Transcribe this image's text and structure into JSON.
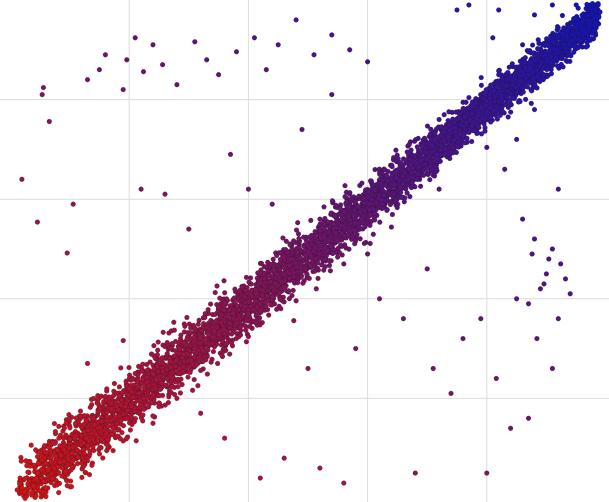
{
  "chart_data": {
    "type": "scatter",
    "title": "",
    "xlabel": "",
    "ylabel": "",
    "xlim": [
      0,
      5
    ],
    "ylim": [
      0,
      5
    ],
    "grid": true,
    "legend": "none",
    "color_low": "#d41414",
    "color_high": "#1414b4",
    "series": [
      {
        "name": "",
        "points": [
          [
            4.91,
            4.83
          ],
          [
            4.95,
            4.88
          ],
          [
            4.86,
            4.79
          ],
          [
            4.8,
            4.7
          ],
          [
            4.72,
            4.65
          ],
          [
            4.65,
            4.55
          ],
          [
            4.58,
            4.5
          ],
          [
            4.5,
            4.38
          ],
          [
            4.42,
            4.3
          ],
          [
            4.35,
            4.25
          ],
          [
            4.25,
            4.12
          ],
          [
            4.18,
            4.08
          ],
          [
            4.1,
            3.98
          ],
          [
            4.0,
            3.88
          ],
          [
            3.92,
            3.8
          ],
          [
            3.82,
            3.7
          ],
          [
            3.75,
            3.62
          ],
          [
            3.65,
            3.5
          ],
          [
            3.58,
            3.45
          ],
          [
            3.48,
            3.35
          ],
          [
            3.38,
            3.22
          ],
          [
            3.3,
            3.15
          ],
          [
            3.22,
            3.05
          ],
          [
            3.12,
            2.95
          ],
          [
            3.02,
            2.85
          ],
          [
            2.95,
            2.8
          ],
          [
            2.85,
            2.68
          ],
          [
            2.75,
            2.58
          ],
          [
            2.66,
            2.48
          ],
          [
            2.57,
            2.4
          ],
          [
            2.48,
            2.3
          ],
          [
            2.38,
            2.22
          ],
          [
            2.3,
            2.12
          ],
          [
            2.2,
            2.02
          ],
          [
            2.1,
            1.95
          ],
          [
            2.0,
            1.85
          ],
          [
            1.9,
            1.75
          ],
          [
            1.8,
            1.65
          ],
          [
            1.7,
            1.55
          ],
          [
            1.62,
            1.48
          ],
          [
            1.52,
            1.38
          ],
          [
            1.42,
            1.3
          ],
          [
            1.32,
            1.2
          ],
          [
            1.22,
            1.1
          ],
          [
            1.12,
            1.0
          ],
          [
            1.02,
            0.92
          ],
          [
            0.92,
            0.82
          ],
          [
            0.82,
            0.72
          ],
          [
            0.72,
            0.64
          ],
          [
            0.62,
            0.55
          ],
          [
            0.52,
            0.45
          ],
          [
            0.42,
            0.36
          ],
          [
            0.32,
            0.28
          ],
          [
            0.22,
            0.2
          ],
          [
            0.15,
            0.14
          ],
          [
            0.1,
            0.1
          ],
          [
            0.06,
            0.08
          ],
          [
            0.12,
            0.06
          ],
          [
            0.2,
            0.12
          ],
          [
            0.3,
            0.35
          ],
          [
            0.4,
            0.48
          ],
          [
            0.55,
            0.62
          ],
          [
            0.7,
            0.8
          ],
          [
            0.85,
            0.95
          ],
          [
            1.0,
            1.1
          ],
          [
            1.15,
            1.28
          ],
          [
            1.35,
            1.5
          ],
          [
            1.55,
            1.7
          ],
          [
            1.75,
            1.92
          ],
          [
            1.95,
            2.12
          ],
          [
            2.15,
            2.32
          ],
          [
            2.35,
            2.55
          ],
          [
            2.6,
            2.8
          ],
          [
            2.85,
            3.05
          ],
          [
            3.1,
            3.3
          ],
          [
            3.35,
            3.55
          ],
          [
            3.6,
            3.8
          ],
          [
            3.85,
            4.02
          ],
          [
            4.1,
            4.25
          ],
          [
            4.35,
            4.48
          ],
          [
            4.6,
            4.72
          ],
          [
            4.3,
            4.55
          ],
          [
            4.75,
            4.95
          ],
          [
            0.3,
            0.1
          ],
          [
            0.6,
            0.35
          ],
          [
            0.9,
            0.62
          ],
          [
            1.25,
            0.95
          ],
          [
            1.6,
            1.28
          ],
          [
            2.0,
            1.62
          ],
          [
            2.4,
            1.98
          ],
          [
            2.8,
            2.35
          ],
          [
            3.2,
            2.72
          ],
          [
            3.6,
            3.1
          ],
          [
            4.0,
            3.52
          ],
          [
            4.4,
            3.9
          ],
          [
            0.28,
            4.12
          ],
          [
            0.27,
            4.05
          ],
          [
            0.33,
            3.78
          ],
          [
            0.1,
            3.2
          ],
          [
            0.23,
            2.77
          ],
          [
            0.48,
            2.46
          ],
          [
            0.53,
            2.95
          ],
          [
            0.65,
            4.2
          ],
          [
            0.75,
            4.3
          ],
          [
            0.8,
            4.45
          ],
          [
            0.95,
            4.1
          ],
          [
            0.98,
            4.4
          ],
          [
            1.05,
            4.62
          ],
          [
            1.12,
            4.28
          ],
          [
            1.2,
            4.55
          ],
          [
            1.28,
            4.35
          ],
          [
            1.4,
            4.15
          ],
          [
            1.55,
            4.58
          ],
          [
            1.65,
            4.4
          ],
          [
            1.75,
            4.25
          ],
          [
            1.9,
            4.48
          ],
          [
            2.05,
            4.62
          ],
          [
            2.15,
            4.3
          ],
          [
            2.25,
            4.55
          ],
          [
            2.4,
            4.8
          ],
          [
            2.55,
            4.45
          ],
          [
            2.7,
            4.65
          ],
          [
            2.85,
            4.5
          ],
          [
            3.0,
            4.38
          ],
          [
            1.3,
            3.05
          ],
          [
            1.85,
            3.45
          ],
          [
            1.1,
            3.1
          ],
          [
            2.45,
            3.7
          ],
          [
            2.7,
            4.05
          ],
          [
            3.75,
            4.9
          ],
          [
            3.85,
            4.95
          ],
          [
            4.1,
            4.9
          ],
          [
            4.4,
            4.85
          ],
          [
            4.55,
            4.95
          ],
          [
            4.05,
            4.62
          ],
          [
            4.15,
            3.3
          ],
          [
            4.25,
            3.6
          ],
          [
            4.6,
            3.1
          ],
          [
            4.3,
            2.8
          ],
          [
            4.4,
            2.6
          ],
          [
            4.55,
            2.5
          ],
          [
            4.5,
            2.25
          ],
          [
            4.45,
            2.1
          ],
          [
            4.35,
            1.95
          ],
          [
            4.6,
            1.8
          ],
          [
            4.7,
            2.05
          ],
          [
            4.52,
            2.4
          ],
          [
            4.62,
            2.35
          ],
          [
            4.48,
            2.15
          ],
          [
            4.38,
            2.45
          ],
          [
            4.66,
            2.2
          ],
          [
            4.25,
            2.0
          ],
          [
            4.42,
            1.6
          ],
          [
            4.55,
            1.3
          ],
          [
            4.08,
            1.2
          ],
          [
            3.55,
            1.3
          ],
          [
            3.8,
            1.6
          ],
          [
            3.95,
            1.8
          ],
          [
            3.7,
            1.05
          ],
          [
            4.2,
            0.7
          ],
          [
            4.35,
            0.8
          ],
          [
            4.0,
            0.25
          ],
          [
            3.4,
            0.25
          ],
          [
            2.8,
            0.15
          ],
          [
            2.6,
            0.3
          ],
          [
            2.3,
            0.4
          ],
          [
            2.1,
            0.2
          ],
          [
            1.8,
            0.6
          ],
          [
            1.6,
            0.85
          ],
          [
            1.4,
            1.0
          ],
          [
            1.2,
            0.75
          ],
          [
            1.05,
            1.25
          ],
          [
            0.95,
            1.58
          ],
          [
            0.65,
            1.35
          ],
          [
            0.55,
            0.75
          ],
          [
            0.45,
            0.6
          ],
          [
            3.1,
            2.0
          ],
          [
            3.3,
            1.8
          ],
          [
            2.9,
            1.5
          ],
          [
            2.5,
            1.3
          ],
          [
            3.5,
            2.3
          ],
          [
            3.0,
            2.45
          ],
          [
            2.2,
            2.95
          ],
          [
            1.5,
            2.7
          ],
          [
            2.0,
            3.1
          ]
        ]
      }
    ]
  }
}
